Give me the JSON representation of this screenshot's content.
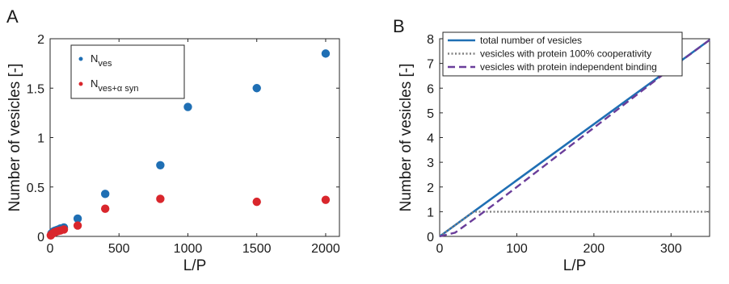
{
  "chart_data": [
    {
      "panel": "A",
      "type": "scatter",
      "xlabel": "L/P",
      "ylabel": "Number of vesicles [-]",
      "xlim": [
        0,
        2100
      ],
      "ylim": [
        0,
        2
      ],
      "xticks": [
        0,
        500,
        1000,
        1500,
        2000
      ],
      "yticks": [
        0,
        0.5,
        1,
        1.5,
        2
      ],
      "ytick_labels": [
        "0",
        "0.5",
        "1",
        "1.5",
        "2"
      ],
      "legend_placement": "top-center",
      "series": [
        {
          "name_main": "N",
          "name_sub": "ves",
          "color": "#1f6fb4",
          "points": [
            [
              10,
              0.03
            ],
            [
              20,
              0.045
            ],
            [
              30,
              0.055
            ],
            [
              40,
              0.06
            ],
            [
              50,
              0.065
            ],
            [
              60,
              0.07
            ],
            [
              75,
              0.08
            ],
            [
              100,
              0.09
            ],
            [
              200,
              0.18
            ],
            [
              400,
              0.43
            ],
            [
              800,
              0.72
            ],
            [
              1000,
              1.31
            ],
            [
              1500,
              1.5
            ],
            [
              2000,
              1.85
            ]
          ]
        },
        {
          "name_main": "N",
          "name_sub": "ves+α syn",
          "color": "#d9262c",
          "points": [
            [
              5,
              0.01
            ],
            [
              10,
              0.02
            ],
            [
              20,
              0.03
            ],
            [
              30,
              0.04
            ],
            [
              40,
              0.045
            ],
            [
              50,
              0.05
            ],
            [
              60,
              0.055
            ],
            [
              75,
              0.06
            ],
            [
              100,
              0.07
            ],
            [
              200,
              0.11
            ],
            [
              400,
              0.28
            ],
            [
              800,
              0.38
            ],
            [
              1500,
              0.35
            ],
            [
              2000,
              0.37
            ]
          ]
        }
      ]
    },
    {
      "panel": "B",
      "type": "line",
      "xlabel": "L/P",
      "ylabel": "Number of vesicles [-]",
      "xlim": [
        0,
        350
      ],
      "ylim": [
        0,
        8
      ],
      "xticks": [
        0,
        100,
        200,
        300
      ],
      "yticks": [
        0,
        1,
        2,
        3,
        4,
        5,
        6,
        7,
        8
      ],
      "legend_placement": "top-left",
      "series": [
        {
          "name": "total number of vesicles",
          "color": "#1f6fb4",
          "style": "solid",
          "points": [
            [
              0,
              0
            ],
            [
              350,
              7.95
            ]
          ]
        },
        {
          "name": "vesicles with protein 100% cooperativity",
          "color": "#808080",
          "style": "dotted",
          "points": [
            [
              0,
              0
            ],
            [
              44,
              1
            ],
            [
              350,
              1
            ]
          ]
        },
        {
          "name": "vesicles with protein independent binding",
          "color": "#6a3d9a",
          "style": "dashed",
          "points": [
            [
              0,
              0
            ],
            [
              20,
              0.15
            ],
            [
              40,
              0.6
            ],
            [
              60,
              1.05
            ],
            [
              100,
              2.0
            ],
            [
              150,
              3.2
            ],
            [
              200,
              4.4
            ],
            [
              250,
              5.6
            ],
            [
              300,
              6.8
            ],
            [
              350,
              7.95
            ]
          ]
        }
      ]
    }
  ],
  "panel_letters": [
    "A",
    "B"
  ]
}
